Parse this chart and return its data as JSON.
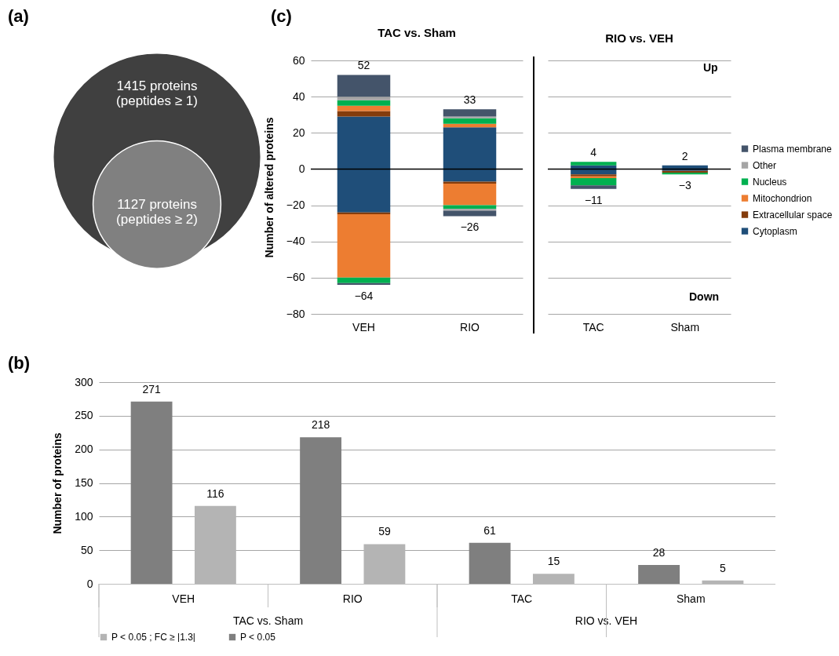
{
  "chart_data": [
    {
      "type": "other",
      "categories": [
        "1415 proteins\n(peptides ≥ 1)",
        "1127 proteins\n(peptides ≥ 2)"
      ],
      "colors": [
        "#404040",
        "#808080"
      ],
      "annotations": [
        "(a)"
      ]
    },
    {
      "type": "bar",
      "stacked": true,
      "title": "TAC vs. Sham",
      "ylabel": "Number of altered proteins",
      "categories": [
        "VEH",
        "RIO"
      ],
      "ylim": [
        -80,
        60
      ],
      "yticks": [
        -80,
        -60,
        -40,
        -20,
        0,
        20,
        40,
        60
      ],
      "grid": "y",
      "annotations": [
        "(c)"
      ],
      "ref_lines": [
        {
          "axis": "y",
          "value": 0,
          "color": "#000000"
        }
      ],
      "totals": [
        [
          "52",
          "−64"
        ],
        [
          "33",
          "−26"
        ]
      ],
      "series": [
        {
          "color": "#1f4e79",
          "values": [
            29,
            23
          ]
        },
        {
          "color": "#843c0c",
          "values": [
            3,
            0
          ]
        },
        {
          "color": "#ed7d31",
          "values": [
            3,
            2
          ]
        },
        {
          "color": "#00b050",
          "values": [
            3,
            3
          ]
        },
        {
          "color": "#a5a5a5",
          "values": [
            2,
            1
          ]
        },
        {
          "color": "#44546a",
          "values": [
            12,
            4
          ]
        },
        {
          "color": "#1f4e79",
          "values": [
            -24,
            -7
          ]
        },
        {
          "color": "#843c0c",
          "values": [
            -1,
            -1
          ]
        },
        {
          "color": "#ed7d31",
          "values": [
            -35,
            -12
          ]
        },
        {
          "color": "#00b050",
          "values": [
            -3,
            -2
          ]
        },
        {
          "color": "#a5a5a5",
          "values": [
            0,
            -1
          ]
        },
        {
          "color": "#44546a",
          "values": [
            -1,
            -3
          ]
        }
      ]
    },
    {
      "type": "bar",
      "stacked": true,
      "title": "RIO vs. VEH",
      "categories": [
        "TAC",
        "Sham"
      ],
      "ylim": [
        -80,
        60
      ],
      "yticks": [
        -80,
        -60,
        -40,
        -20,
        0,
        20,
        40,
        60
      ],
      "grid": "y",
      "tick_labels": "x",
      "legend": "right",
      "annotations": [
        "Up",
        "Down"
      ],
      "ref_lines": [
        {
          "axis": "y",
          "value": 0,
          "color": "#000000"
        }
      ],
      "totals": [
        [
          "4",
          "−11"
        ],
        [
          "2",
          "−3"
        ]
      ],
      "series": [
        {
          "name": "Cytoplasm",
          "color": "#1f4e79",
          "values": [
            2,
            2
          ]
        },
        {
          "name": "Extracellular space",
          "color": "#843c0c",
          "values": [
            0,
            0
          ]
        },
        {
          "name": "Mitochondrion",
          "color": "#ed7d31",
          "values": [
            0,
            0
          ]
        },
        {
          "name": "Nucleus",
          "color": "#00b050",
          "values": [
            2,
            0
          ]
        },
        {
          "name": "Other",
          "color": "#a5a5a5",
          "values": [
            0,
            0
          ]
        },
        {
          "name": "Plasma membrane",
          "color": "#44546a",
          "values": [
            0,
            0
          ]
        },
        {
          "color": "#1f4e79",
          "values": [
            -3,
            -1
          ]
        },
        {
          "color": "#843c0c",
          "values": [
            -1,
            -1
          ]
        },
        {
          "color": "#ed7d31",
          "values": [
            -1,
            0
          ]
        },
        {
          "color": "#00b050",
          "values": [
            -4,
            -1
          ]
        },
        {
          "color": "#a5a5a5",
          "values": [
            0,
            0
          ]
        },
        {
          "color": "#44546a",
          "values": [
            -2,
            0
          ]
        }
      ]
    },
    {
      "type": "bar",
      "ylabel": "Number of proteins",
      "categories": [
        "VEH",
        "RIO",
        "TAC",
        "Sham"
      ],
      "ylim": [
        0,
        300
      ],
      "yticks": [
        0,
        50,
        100,
        150,
        200,
        250,
        300
      ],
      "grid": "y",
      "legend": "bottom",
      "data_labels": true,
      "annotations": [
        "(b)",
        "TAC vs. Sham",
        "RIO vs. VEH"
      ],
      "series": [
        {
          "name": "P < 0.05",
          "color": "#7f7f7f",
          "values": [
            271,
            218,
            61,
            28
          ]
        },
        {
          "name": "P < 0.05 ; FC ≥ |1.3|",
          "color": "#b4b4b4",
          "values": [
            116,
            59,
            15,
            5
          ]
        }
      ]
    }
  ]
}
